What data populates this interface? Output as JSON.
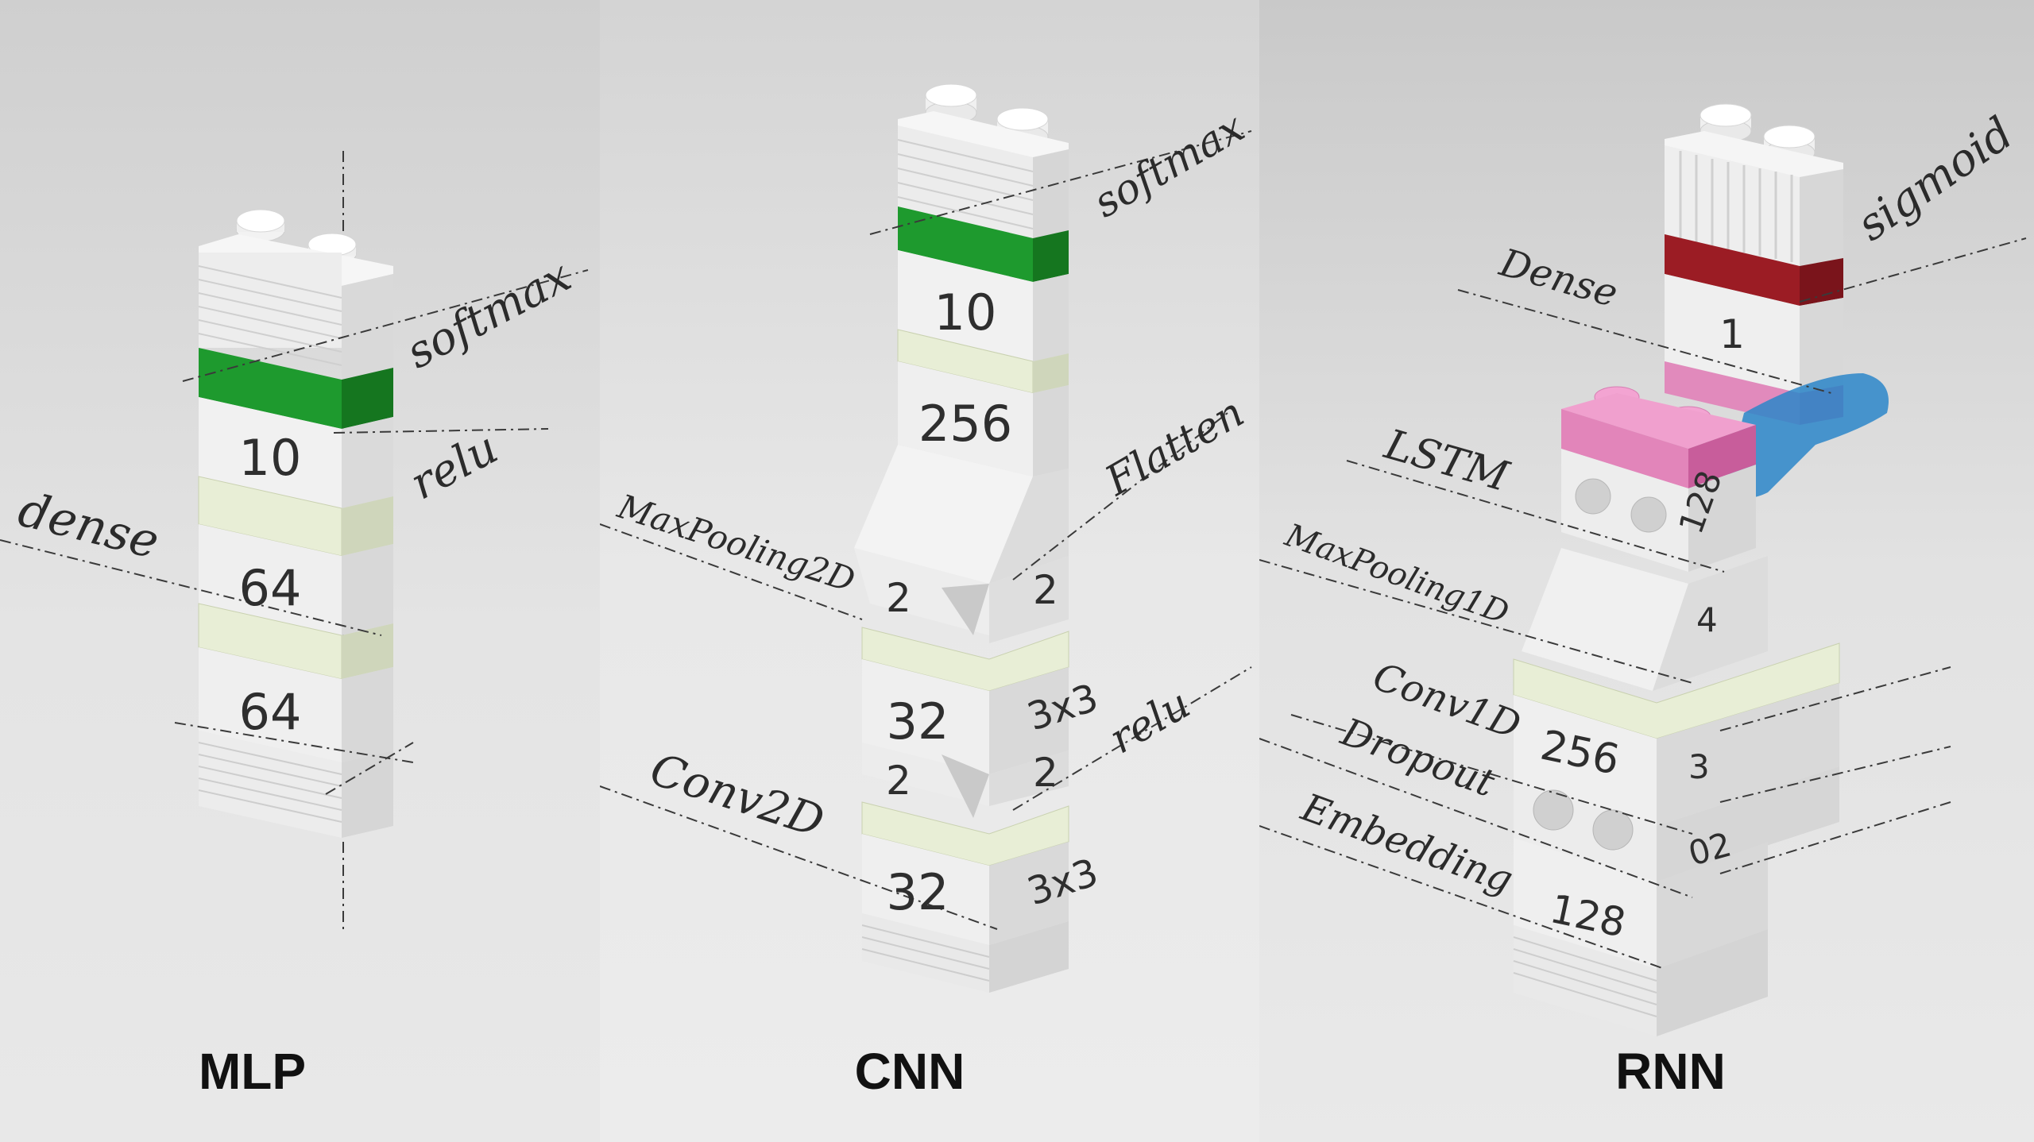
{
  "panels": {
    "mlp": {
      "title": "MLP",
      "labels": {
        "dense": "dense",
        "relu": "relu",
        "softmax": "softmax"
      },
      "blocks": {
        "out": "10",
        "h2": "64",
        "h1": "64"
      },
      "colors": {
        "activation_plate": "#1e9a2e"
      }
    },
    "cnn": {
      "title": "CNN",
      "labels": {
        "conv": "Conv2D",
        "pool": "MaxPooling2D",
        "flatten": "Flatten",
        "relu": "relu",
        "softmax": "softmax"
      },
      "blocks": {
        "out": "10",
        "dense": "256",
        "pool_a": "2",
        "pool_b": "2",
        "conv2_filters": "32",
        "conv2_kernel": "3x3",
        "pool2_a": "2",
        "pool2_b": "2",
        "conv1_filters": "32",
        "conv1_kernel": "3x3"
      },
      "colors": {
        "activation_plate": "#1e9a2e"
      }
    },
    "rnn": {
      "title": "RNN",
      "labels": {
        "dense": "Dense",
        "lstm": "LSTM",
        "pool": "MaxPooling1D",
        "conv": "Conv1D",
        "dropout": "Dropout",
        "embed": "Embedding",
        "sigmoid": "sigmoid"
      },
      "blocks": {
        "dense_units": "1",
        "lstm_units": "128",
        "pool_size": "4",
        "conv_filters": "256",
        "conv_kernel": "3",
        "dropout_rate": "02",
        "embed_dim": "128"
      },
      "colors": {
        "activation_plate": "#9b1c24",
        "lstm_brick": "#e27bb6",
        "tube": "#2b86c9"
      }
    }
  }
}
